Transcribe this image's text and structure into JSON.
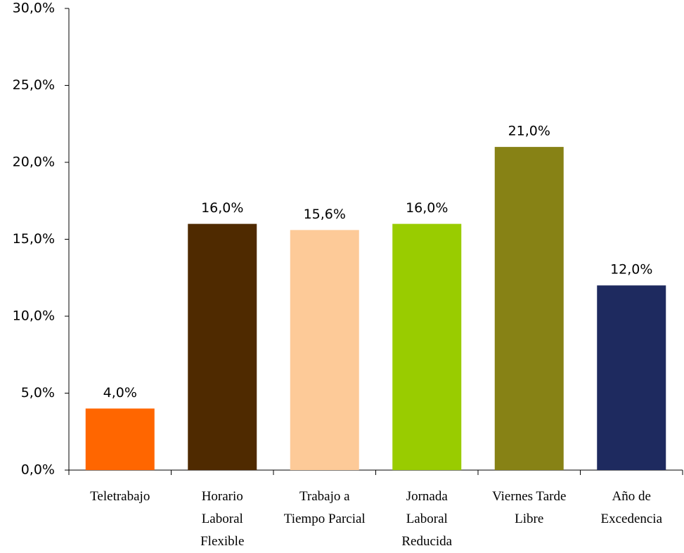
{
  "chart_data": {
    "type": "bar",
    "categories": [
      "Teletrabajo",
      "Horario Laboral Flexible",
      "Trabajo a Tiempo Parcial",
      "Jornada Laboral Reducida",
      "Viernes Tarde Libre",
      "Año de Excedencia"
    ],
    "values": [
      4.0,
      16.0,
      15.6,
      16.0,
      21.0,
      12.0
    ],
    "value_labels": [
      "4,0%",
      "16,0%",
      "15,6%",
      "16,0%",
      "21,0%",
      "12,0%"
    ],
    "colors": [
      "#ff6600",
      "#4f2a00",
      "#fdca98",
      "#99cc00",
      "#878215",
      "#1e2a5f"
    ],
    "ylim": [
      0,
      30
    ],
    "yticks": [
      {
        "value": 0,
        "label": "0,0%"
      },
      {
        "value": 5,
        "label": "5,0%"
      },
      {
        "value": 10,
        "label": "10,0%"
      },
      {
        "value": 15,
        "label": "15,0%"
      },
      {
        "value": 20,
        "label": "20,0%"
      },
      {
        "value": 25,
        "label": "25,0%"
      },
      {
        "value": 30,
        "label": "30,0%"
      }
    ],
    "grid": false
  }
}
